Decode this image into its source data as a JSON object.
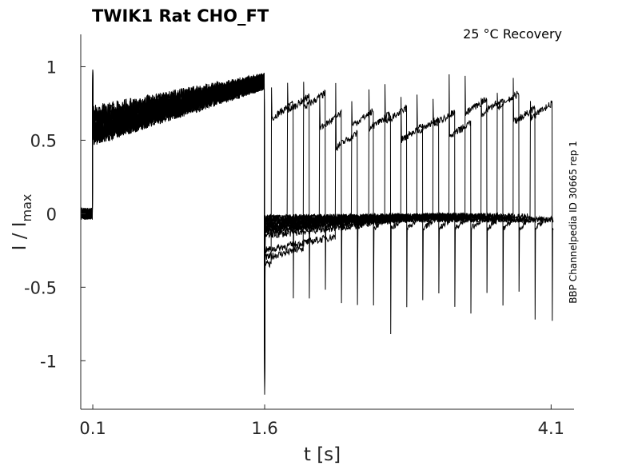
{
  "chart_data": {
    "type": "line",
    "title": "TWIK1  Rat  CHO_FT",
    "subtitle": "25 °C  Recovery",
    "side_note": "BBP Channelpedia ID 30665 rep 1",
    "xlabel": "t [s]",
    "ylabel": "I / I",
    "ylabel_sub": "max",
    "xlim": [
      -0.005,
      4.3
    ],
    "ylim": [
      -1.33,
      1.22
    ],
    "xticks": [
      0.1,
      1.6,
      4.1
    ],
    "xtick_labels": [
      "0.1",
      "1.6",
      "4.1"
    ],
    "yticks": [
      1,
      0.5,
      0,
      -0.5,
      -1
    ],
    "ytick_labels": [
      "1",
      "0.5",
      "0",
      "-0.5",
      "-1"
    ],
    "grid": false,
    "protocol": {
      "prepulse_start": 0.1,
      "prepulse_end": 1.6,
      "prepulse_level_start": 0.6,
      "prepulse_level_end": 0.9,
      "end_spike": -1.1,
      "pulse_duration": 0.19
    },
    "sweeps": [
      {
        "test_start": 1.66,
        "level": 0.65,
        "hold": -0.35
      },
      {
        "test_start": 1.8,
        "level": 0.7,
        "hold": -0.12
      },
      {
        "test_start": 1.94,
        "level": 0.72,
        "hold": -0.3
      },
      {
        "test_start": 2.08,
        "level": 0.58,
        "hold": -0.1
      },
      {
        "test_start": 2.22,
        "level": 0.45,
        "hold": -0.25
      },
      {
        "test_start": 2.36,
        "level": 0.6,
        "hold": -0.08
      },
      {
        "test_start": 2.51,
        "level": 0.58,
        "hold": -0.15
      },
      {
        "test_start": 2.65,
        "level": 0.62,
        "hold": -0.06
      },
      {
        "test_start": 2.79,
        "level": 0.5,
        "hold": -0.12
      },
      {
        "test_start": 2.93,
        "level": 0.55,
        "hold": -0.05
      },
      {
        "test_start": 3.07,
        "level": 0.6,
        "hold": -0.1
      },
      {
        "test_start": 3.21,
        "level": 0.52,
        "hold": -0.05
      },
      {
        "test_start": 3.35,
        "level": 0.68,
        "hold": -0.08
      },
      {
        "test_start": 3.49,
        "level": 0.68,
        "hold": -0.03
      },
      {
        "test_start": 3.63,
        "level": 0.72,
        "hold": -0.06
      },
      {
        "test_start": 3.77,
        "level": 0.62,
        "hold": -0.03
      },
      {
        "test_start": 3.92,
        "level": 0.65,
        "hold": -0.03
      }
    ]
  }
}
